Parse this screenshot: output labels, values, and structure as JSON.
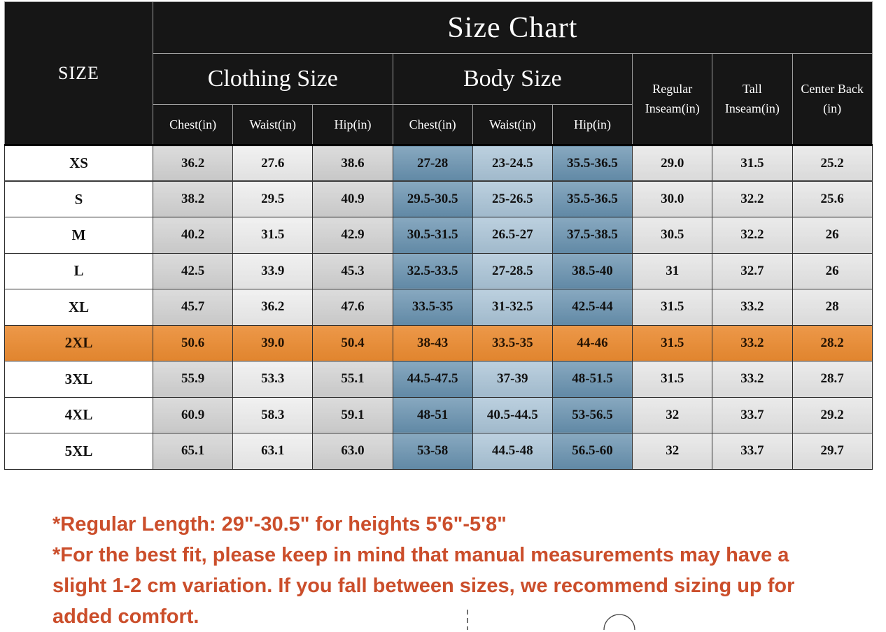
{
  "colors": {
    "header_bg": "#161616",
    "highlight": "#EA8A30",
    "blue_dark": "#6690AE",
    "blue_light": "#A9C3D6",
    "note": "#CB4E2B"
  },
  "chart_data": {
    "type": "table",
    "title": "Size Chart",
    "size_header": "SIZE",
    "groups": {
      "clothing": "Clothing Size",
      "body": "Body Size",
      "regular_inseam": "Regular Inseam(in)",
      "tall_inseam": "Tall Inseam(in)",
      "center_back": "Center Back (in)"
    },
    "measure_headers": [
      "Chest(in)",
      "Waist(in)",
      "Hip(in)"
    ],
    "columns": [
      "SIZE",
      "Clothing Chest(in)",
      "Clothing Waist(in)",
      "Clothing Hip(in)",
      "Body Chest(in)",
      "Body Waist(in)",
      "Body Hip(in)",
      "Regular Inseam(in)",
      "Tall Inseam(in)",
      "Center Back (in)"
    ],
    "rows": [
      {
        "size": "XS",
        "clothing": [
          "36.2",
          "27.6",
          "38.6"
        ],
        "body": [
          "27-28",
          "23-24.5",
          "35.5-36.5"
        ],
        "regular_inseam": "29.0",
        "tall_inseam": "31.5",
        "center_back": "25.2",
        "highlight": false
      },
      {
        "size": "S",
        "clothing": [
          "38.2",
          "29.5",
          "40.9"
        ],
        "body": [
          "29.5-30.5",
          "25-26.5",
          "35.5-36.5"
        ],
        "regular_inseam": "30.0",
        "tall_inseam": "32.2",
        "center_back": "25.6",
        "highlight": false
      },
      {
        "size": "M",
        "clothing": [
          "40.2",
          "31.5",
          "42.9"
        ],
        "body": [
          "30.5-31.5",
          "26.5-27",
          "37.5-38.5"
        ],
        "regular_inseam": "30.5",
        "tall_inseam": "32.2",
        "center_back": "26",
        "highlight": false
      },
      {
        "size": "L",
        "clothing": [
          "42.5",
          "33.9",
          "45.3"
        ],
        "body": [
          "32.5-33.5",
          "27-28.5",
          "38.5-40"
        ],
        "regular_inseam": "31",
        "tall_inseam": "32.7",
        "center_back": "26",
        "highlight": false
      },
      {
        "size": "XL",
        "clothing": [
          "45.7",
          "36.2",
          "47.6"
        ],
        "body": [
          "33.5-35",
          "31-32.5",
          "42.5-44"
        ],
        "regular_inseam": "31.5",
        "tall_inseam": "33.2",
        "center_back": "28",
        "highlight": false
      },
      {
        "size": "2XL",
        "clothing": [
          "50.6",
          "39.0",
          "50.4"
        ],
        "body": [
          "38-43",
          "33.5-35",
          "44-46"
        ],
        "regular_inseam": "31.5",
        "tall_inseam": "33.2",
        "center_back": "28.2",
        "highlight": true
      },
      {
        "size": "3XL",
        "clothing": [
          "55.9",
          "53.3",
          "55.1"
        ],
        "body": [
          "44.5-47.5",
          "37-39",
          "48-51.5"
        ],
        "regular_inseam": "31.5",
        "tall_inseam": "33.2",
        "center_back": "28.7",
        "highlight": false
      },
      {
        "size": "4XL",
        "clothing": [
          "60.9",
          "58.3",
          "59.1"
        ],
        "body": [
          "48-51",
          "40.5-44.5",
          "53-56.5"
        ],
        "regular_inseam": "32",
        "tall_inseam": "33.7",
        "center_back": "29.2",
        "highlight": false
      },
      {
        "size": "5XL",
        "clothing": [
          "65.1",
          "63.1",
          "63.0"
        ],
        "body": [
          "53-58",
          "44.5-48",
          "56.5-60"
        ],
        "regular_inseam": "32",
        "tall_inseam": "33.7",
        "center_back": "29.7",
        "highlight": false
      }
    ]
  },
  "notes": [
    "*Regular Length: 29\"-30.5\" for heights 5'6\"-5'8\"",
    "*For the best fit, please keep in mind that manual measurements may have a slight 1-2 cm variation. If you fall between sizes, we recommend sizing up for added comfort."
  ]
}
